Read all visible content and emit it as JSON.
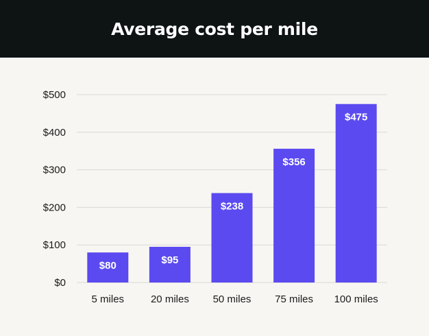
{
  "chart_data": {
    "type": "bar",
    "title": "Average cost per mile",
    "categories": [
      "5 miles",
      "20 miles",
      "50 miles",
      "75 miles",
      "100 miles"
    ],
    "values": [
      80,
      95,
      238,
      356,
      475
    ],
    "value_labels": [
      "$80",
      "$95",
      "$238",
      "$356",
      "$475"
    ],
    "y_ticks": [
      0,
      100,
      200,
      300,
      400,
      500
    ],
    "y_tick_labels": [
      "$0",
      "$100",
      "$200",
      "$300",
      "$400",
      "$500"
    ],
    "ylim": [
      0,
      500
    ],
    "xlabel": "",
    "ylabel": "",
    "grid": true,
    "bar_color": "#5b4af0",
    "header_color": "#0e1314",
    "background_color": "#f7f6f2"
  }
}
